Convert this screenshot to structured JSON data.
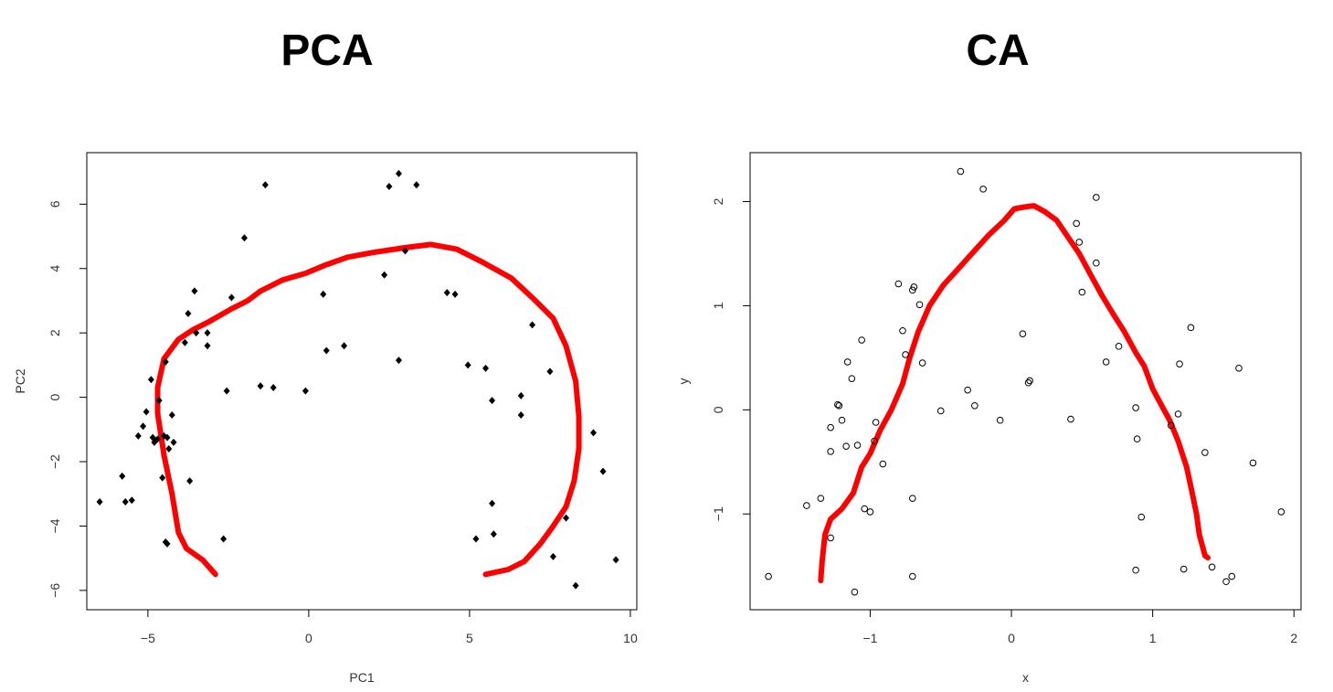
{
  "chart_data": [
    {
      "type": "scatter",
      "title": "PCA",
      "xlabel": "PC1",
      "ylabel": "PC2",
      "xlim": [
        -6.9,
        10.2
      ],
      "ylim": [
        -6.6,
        7.6
      ],
      "xticks": [
        -5,
        0,
        5,
        10
      ],
      "yticks": [
        -6,
        -4,
        -2,
        0,
        2,
        4,
        6
      ],
      "grid": false,
      "marker": "filled-diamond",
      "curve_color": "#ff0000",
      "points": [
        [
          -6.5,
          -3.25
        ],
        [
          -5.8,
          -2.45
        ],
        [
          -5.7,
          -3.25
        ],
        [
          -5.5,
          -3.2
        ],
        [
          -5.3,
          -1.2
        ],
        [
          -5.15,
          -0.9
        ],
        [
          -5.05,
          -0.45
        ],
        [
          -4.9,
          0.55
        ],
        [
          -4.85,
          -1.25
        ],
        [
          -4.8,
          -1.4
        ],
        [
          -4.7,
          -1.3
        ],
        [
          -4.65,
          -0.1
        ],
        [
          -4.55,
          -2.5
        ],
        [
          -4.45,
          1.1
        ],
        [
          -4.5,
          -1.2
        ],
        [
          -4.4,
          -1.25
        ],
        [
          -4.35,
          -1.6
        ],
        [
          -4.25,
          -0.55
        ],
        [
          -4.2,
          -1.4
        ],
        [
          -4.45,
          -4.5
        ],
        [
          -4.4,
          -4.55
        ],
        [
          -3.85,
          1.7
        ],
        [
          -3.75,
          2.6
        ],
        [
          -3.7,
          -2.6
        ],
        [
          -3.55,
          3.3
        ],
        [
          -3.5,
          2.0
        ],
        [
          -3.15,
          2.0
        ],
        [
          -3.15,
          1.6
        ],
        [
          -2.65,
          -4.4
        ],
        [
          -2.55,
          0.2
        ],
        [
          -2.4,
          3.1
        ],
        [
          -2.0,
          4.95
        ],
        [
          -1.5,
          0.35
        ],
        [
          -1.35,
          6.6
        ],
        [
          -1.1,
          0.3
        ],
        [
          -0.1,
          0.2
        ],
        [
          0.45,
          3.2
        ],
        [
          0.55,
          1.45
        ],
        [
          1.1,
          1.6
        ],
        [
          2.35,
          3.8
        ],
        [
          2.5,
          6.55
        ],
        [
          2.8,
          1.15
        ],
        [
          2.8,
          6.95
        ],
        [
          3.0,
          4.55
        ],
        [
          3.35,
          6.6
        ],
        [
          4.3,
          3.25
        ],
        [
          4.55,
          3.2
        ],
        [
          4.95,
          1.0
        ],
        [
          5.2,
          -4.4
        ],
        [
          5.5,
          0.9
        ],
        [
          5.7,
          -0.1
        ],
        [
          5.7,
          -3.3
        ],
        [
          5.75,
          -4.25
        ],
        [
          6.6,
          0.05
        ],
        [
          6.6,
          -0.55
        ],
        [
          6.95,
          2.25
        ],
        [
          7.5,
          0.8
        ],
        [
          7.6,
          -4.95
        ],
        [
          8.0,
          -3.75
        ],
        [
          8.3,
          -5.85
        ],
        [
          8.85,
          -1.1
        ],
        [
          9.15,
          -2.3
        ],
        [
          9.55,
          -5.05
        ]
      ],
      "curve": [
        [
          -2.9,
          -5.5
        ],
        [
          -3.3,
          -5.05
        ],
        [
          -3.8,
          -4.7
        ],
        [
          -4.05,
          -4.2
        ],
        [
          -4.25,
          -3.0
        ],
        [
          -4.5,
          -1.8
        ],
        [
          -4.7,
          -0.5
        ],
        [
          -4.7,
          0.3
        ],
        [
          -4.5,
          1.2
        ],
        [
          -4.05,
          1.8
        ],
        [
          -3.6,
          2.1
        ],
        [
          -3.1,
          2.35
        ],
        [
          -2.4,
          2.75
        ],
        [
          -1.9,
          3.0
        ],
        [
          -1.5,
          3.3
        ],
        [
          -0.8,
          3.65
        ],
        [
          -0.1,
          3.85
        ],
        [
          0.5,
          4.1
        ],
        [
          1.2,
          4.35
        ],
        [
          2.0,
          4.5
        ],
        [
          3.0,
          4.65
        ],
        [
          3.8,
          4.75
        ],
        [
          4.6,
          4.6
        ],
        [
          5.4,
          4.2
        ],
        [
          6.3,
          3.7
        ],
        [
          7.0,
          3.05
        ],
        [
          7.6,
          2.45
        ],
        [
          8.0,
          1.6
        ],
        [
          8.3,
          0.5
        ],
        [
          8.4,
          -0.6
        ],
        [
          8.4,
          -1.6
        ],
        [
          8.25,
          -2.6
        ],
        [
          8.0,
          -3.4
        ],
        [
          7.6,
          -4.0
        ],
        [
          7.2,
          -4.55
        ],
        [
          6.7,
          -5.1
        ],
        [
          6.2,
          -5.35
        ],
        [
          5.5,
          -5.5
        ]
      ]
    },
    {
      "type": "scatter",
      "title": "CA",
      "xlabel": "x",
      "ylabel": "y",
      "xlim": [
        -1.85,
        2.05
      ],
      "ylim": [
        -1.92,
        2.47
      ],
      "xticks": [
        -1,
        0,
        1,
        2
      ],
      "yticks": [
        -1,
        0,
        1,
        2
      ],
      "grid": false,
      "marker": "open-circle",
      "curve_color": "#ff0000",
      "points": [
        [
          -1.72,
          -1.6
        ],
        [
          -1.45,
          -0.92
        ],
        [
          -1.35,
          -0.85
        ],
        [
          -1.28,
          -1.23
        ],
        [
          -1.28,
          -0.4
        ],
        [
          -1.28,
          -0.17
        ],
        [
          -1.23,
          0.05
        ],
        [
          -1.22,
          0.04
        ],
        [
          -1.2,
          -0.1
        ],
        [
          -1.17,
          -0.35
        ],
        [
          -1.16,
          0.46
        ],
        [
          -1.13,
          0.3
        ],
        [
          -1.11,
          -1.75
        ],
        [
          -1.09,
          -0.34
        ],
        [
          -1.06,
          0.67
        ],
        [
          -1.04,
          -0.95
        ],
        [
          -1.0,
          -0.98
        ],
        [
          -0.97,
          -0.3
        ],
        [
          -0.96,
          -0.12
        ],
        [
          -0.91,
          -0.52
        ],
        [
          -0.8,
          1.21
        ],
        [
          -0.77,
          0.76
        ],
        [
          -0.75,
          0.53
        ],
        [
          -0.7,
          1.15
        ],
        [
          -0.69,
          1.18
        ],
        [
          -0.7,
          -0.85
        ],
        [
          -0.7,
          -1.6
        ],
        [
          -0.65,
          1.01
        ],
        [
          -0.63,
          0.45
        ],
        [
          -0.5,
          -0.01
        ],
        [
          -0.36,
          2.29
        ],
        [
          -0.31,
          0.19
        ],
        [
          -0.26,
          0.04
        ],
        [
          -0.2,
          2.12
        ],
        [
          -0.08,
          -0.1
        ],
        [
          0.08,
          0.73
        ],
        [
          0.12,
          0.26
        ],
        [
          0.13,
          0.28
        ],
        [
          0.42,
          -0.09
        ],
        [
          0.46,
          1.79
        ],
        [
          0.48,
          1.61
        ],
        [
          0.5,
          1.13
        ],
        [
          0.6,
          2.04
        ],
        [
          0.6,
          1.41
        ],
        [
          0.67,
          0.46
        ],
        [
          0.76,
          0.61
        ],
        [
          0.88,
          0.02
        ],
        [
          0.89,
          -0.28
        ],
        [
          0.88,
          -1.54
        ],
        [
          0.92,
          -1.03
        ],
        [
          1.13,
          -0.15
        ],
        [
          1.18,
          -0.04
        ],
        [
          1.19,
          0.44
        ],
        [
          1.22,
          -1.53
        ],
        [
          1.27,
          0.79
        ],
        [
          1.37,
          -0.41
        ],
        [
          1.42,
          -1.51
        ],
        [
          1.52,
          -1.65
        ],
        [
          1.56,
          -1.6
        ],
        [
          1.61,
          0.4
        ],
        [
          1.71,
          -0.51
        ],
        [
          1.91,
          -0.98
        ]
      ],
      "curve": [
        [
          -1.35,
          -1.64
        ],
        [
          -1.34,
          -1.45
        ],
        [
          -1.32,
          -1.2
        ],
        [
          -1.28,
          -1.05
        ],
        [
          -1.2,
          -0.95
        ],
        [
          -1.12,
          -0.8
        ],
        [
          -1.06,
          -0.55
        ],
        [
          -1.0,
          -0.42
        ],
        [
          -0.93,
          -0.2
        ],
        [
          -0.85,
          0.0
        ],
        [
          -0.77,
          0.25
        ],
        [
          -0.72,
          0.5
        ],
        [
          -0.66,
          0.75
        ],
        [
          -0.58,
          1.0
        ],
        [
          -0.48,
          1.2
        ],
        [
          -0.38,
          1.35
        ],
        [
          -0.28,
          1.5
        ],
        [
          -0.16,
          1.68
        ],
        [
          -0.05,
          1.82
        ],
        [
          0.02,
          1.93
        ],
        [
          0.1,
          1.95
        ],
        [
          0.16,
          1.96
        ],
        [
          0.24,
          1.9
        ],
        [
          0.32,
          1.82
        ],
        [
          0.4,
          1.66
        ],
        [
          0.48,
          1.5
        ],
        [
          0.56,
          1.3
        ],
        [
          0.64,
          1.1
        ],
        [
          0.72,
          0.92
        ],
        [
          0.8,
          0.75
        ],
        [
          0.88,
          0.55
        ],
        [
          0.94,
          0.42
        ],
        [
          1.0,
          0.2
        ],
        [
          1.06,
          0.05
        ],
        [
          1.12,
          -0.1
        ],
        [
          1.18,
          -0.3
        ],
        [
          1.24,
          -0.55
        ],
        [
          1.28,
          -0.8
        ],
        [
          1.31,
          -1.0
        ],
        [
          1.33,
          -1.2
        ],
        [
          1.37,
          -1.4
        ],
        [
          1.39,
          -1.42
        ]
      ]
    }
  ]
}
